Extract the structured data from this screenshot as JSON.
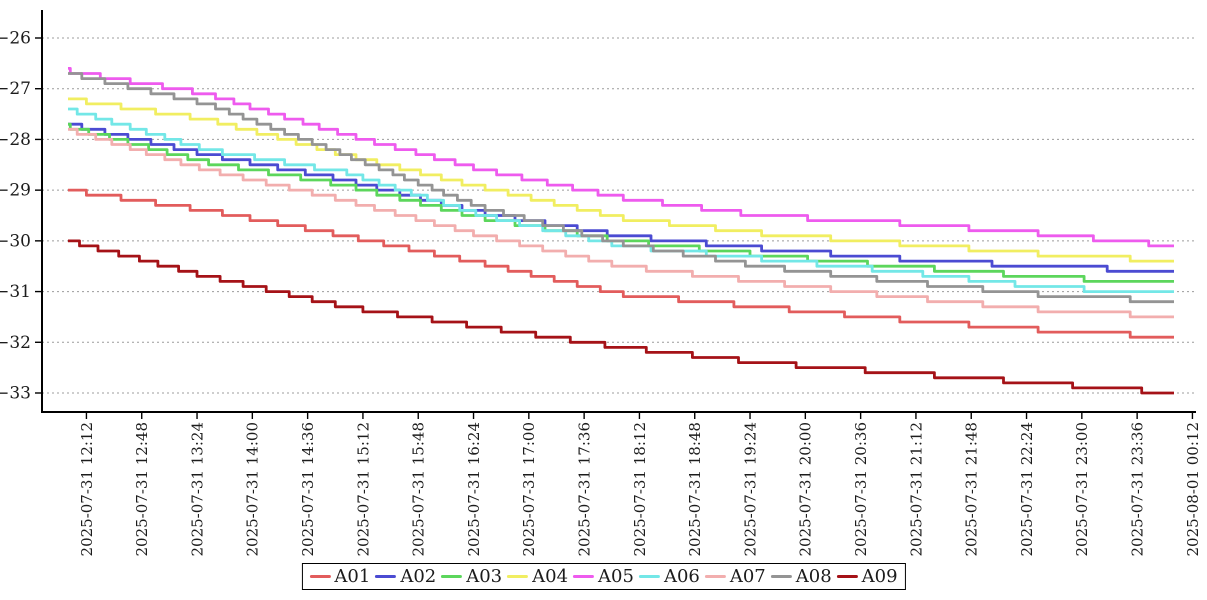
{
  "chart_data": {
    "type": "line",
    "line_style": "stepped (values quantized to 0.1, monotonically decreasing)",
    "title": "",
    "xlabel": "",
    "ylabel": "",
    "grid": "horizontal dashed gridlines",
    "legend_position": "bottom-center, horizontal, black-bordered box",
    "y_ticks": [
      -26,
      -27,
      -28,
      -29,
      -30,
      -31,
      -32,
      -33
    ],
    "y_tick_labels": [
      "−26",
      "−27",
      "−28",
      "−29",
      "−30",
      "−31",
      "−32",
      "−33"
    ],
    "ylim": [
      -33.4,
      -25.45
    ],
    "x_ticks_minutes": [
      12,
      48,
      84,
      120,
      156,
      192,
      228,
      264,
      300,
      336,
      372,
      408,
      444,
      480,
      516,
      552,
      588,
      624,
      660,
      696,
      732
    ],
    "x_tick_labels": [
      "2025-07-31 12:12",
      "2025-07-31 12:48",
      "2025-07-31 13:24",
      "2025-07-31 14:00",
      "2025-07-31 14:36",
      "2025-07-31 15:12",
      "2025-07-31 15:48",
      "2025-07-31 16:24",
      "2025-07-31 17:00",
      "2025-07-31 17:36",
      "2025-07-31 18:12",
      "2025-07-31 18:48",
      "2025-07-31 19:24",
      "2025-07-31 20:00",
      "2025-07-31 20:36",
      "2025-07-31 21:12",
      "2025-07-31 21:48",
      "2025-07-31 22:24",
      "2025-07-31 23:00",
      "2025-07-31 23:36",
      "2025-08-01 00:12"
    ],
    "anchor_minutes": [
      0,
      90,
      180,
      270,
      360,
      450,
      540,
      630,
      720
    ],
    "series": [
      {
        "name": "A01",
        "color": "#e25c5c",
        "values": [
          -29.0,
          -29.4,
          -29.9,
          -30.45,
          -31.05,
          -31.3,
          -31.55,
          -31.75,
          -31.9
        ]
      },
      {
        "name": "A02",
        "color": "#4b4bd2",
        "values": [
          -27.7,
          -28.3,
          -28.8,
          -29.45,
          -29.9,
          -30.15,
          -30.35,
          -30.5,
          -30.6
        ]
      },
      {
        "name": "A03",
        "color": "#5cd65c",
        "values": [
          -27.75,
          -28.45,
          -28.9,
          -29.55,
          -30.0,
          -30.27,
          -30.5,
          -30.7,
          -30.85
        ]
      },
      {
        "name": "A04",
        "color": "#f1ee61",
        "values": [
          -27.2,
          -27.6,
          -28.3,
          -28.95,
          -29.55,
          -29.85,
          -30.05,
          -30.25,
          -30.4
        ]
      },
      {
        "name": "A05",
        "color": "#ee5bee",
        "values": [
          -26.65,
          -27.1,
          -27.9,
          -28.6,
          -29.15,
          -29.5,
          -29.65,
          -29.85,
          -30.1
        ]
      },
      {
        "name": "A06",
        "color": "#73e7e7",
        "values": [
          -27.4,
          -28.2,
          -28.65,
          -29.5,
          -30.1,
          -30.35,
          -30.6,
          -30.9,
          -31.05
        ]
      },
      {
        "name": "A07",
        "color": "#f2aeae",
        "values": [
          -27.8,
          -28.6,
          -29.2,
          -29.9,
          -30.5,
          -30.8,
          -31.1,
          -31.35,
          -31.5
        ]
      },
      {
        "name": "A08",
        "color": "#949494",
        "values": [
          -26.7,
          -27.3,
          -28.3,
          -29.35,
          -30.05,
          -30.5,
          -30.8,
          -31.05,
          -31.2
        ]
      },
      {
        "name": "A09",
        "color": "#a51217",
        "values": [
          -30.0,
          -30.7,
          -31.3,
          -31.7,
          -32.1,
          -32.4,
          -32.6,
          -32.8,
          -33.0
        ]
      }
    ]
  },
  "legend": {
    "entries": [
      "A01",
      "A02",
      "A03",
      "A04",
      "A05",
      "A06",
      "A07",
      "A08",
      "A09"
    ]
  }
}
